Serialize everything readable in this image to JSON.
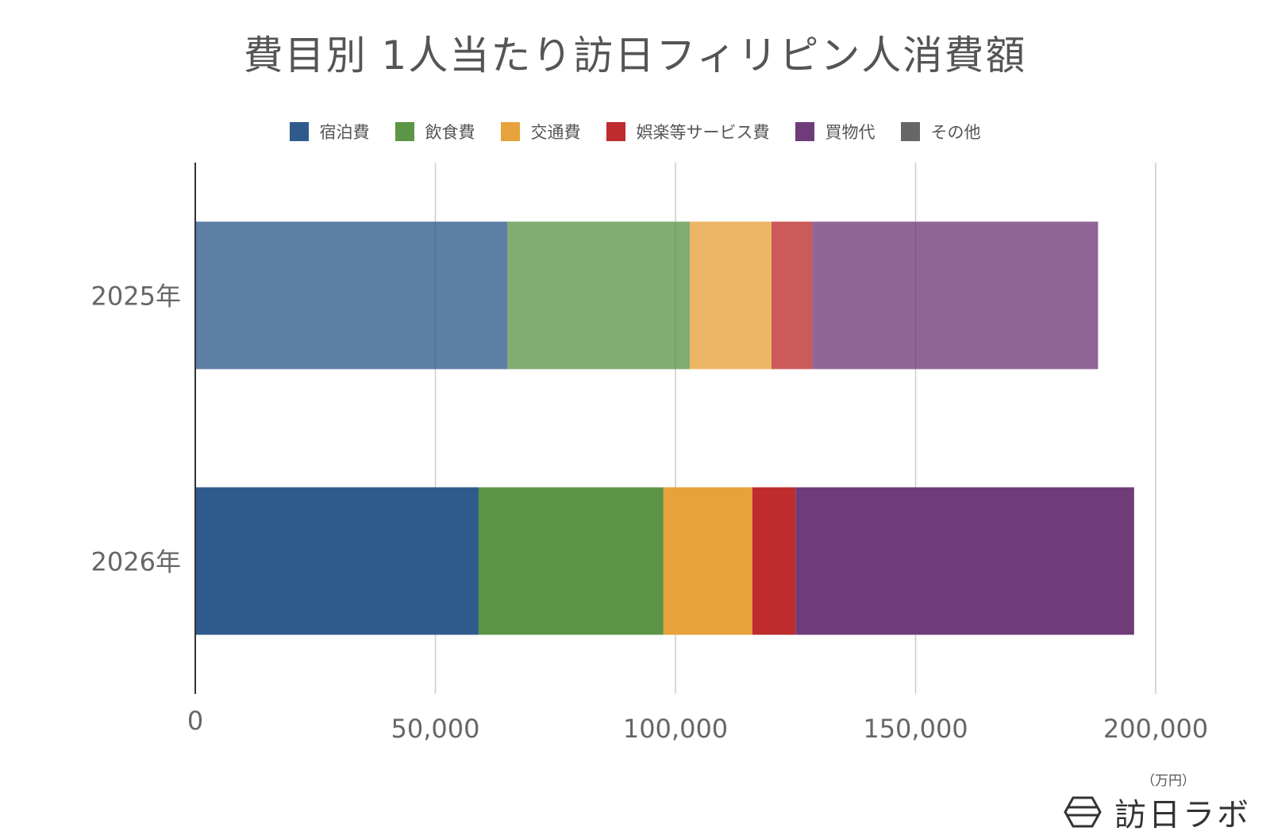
{
  "chart_data": {
    "type": "bar",
    "orientation": "horizontal",
    "stacked": true,
    "title": "費目別 1人当たり訪日フィリピン人消費額",
    "categories": [
      "2025年",
      "2026年"
    ],
    "series": [
      {
        "name": "宿泊費",
        "color": "#2F5A8C",
        "values": [
          65000,
          59000
        ]
      },
      {
        "name": "飲食費",
        "color": "#5D9546",
        "values": [
          38000,
          38500
        ]
      },
      {
        "name": "交通費",
        "color": "#E8A23B",
        "values": [
          17000,
          18500
        ]
      },
      {
        "name": "娯楽等サービス費",
        "color": "#BE2C2D",
        "values": [
          8500,
          9000
        ]
      },
      {
        "name": "買物代",
        "color": "#6F3B79",
        "values": [
          59500,
          70500
        ]
      },
      {
        "name": "その他",
        "color": "#666666",
        "values": [
          0,
          0
        ]
      }
    ],
    "faded_category": "2025年",
    "xlim": [
      0,
      200000
    ],
    "xticks": [
      "0",
      "50,000",
      "100,000",
      "150,000",
      "200,000"
    ],
    "xunit": "（万円）",
    "grid": true,
    "legend_position": "top"
  },
  "brand": {
    "name": "訪日ラボ"
  }
}
